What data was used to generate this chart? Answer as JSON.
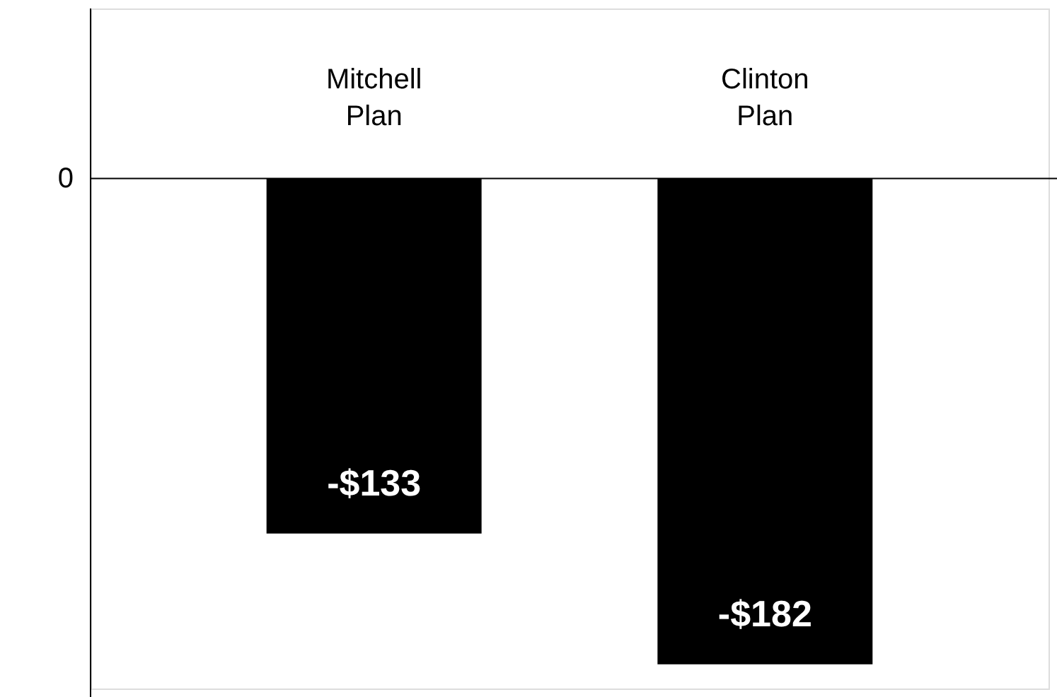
{
  "chart_data": {
    "type": "bar",
    "categories": [
      "Mitchell Plan",
      "Clinton Plan"
    ],
    "values": [
      -133,
      -182
    ],
    "value_labels": [
      "-$133",
      "-$182"
    ],
    "annotations": [
      "0"
    ],
    "color": "#000000",
    "grid": false
  }
}
